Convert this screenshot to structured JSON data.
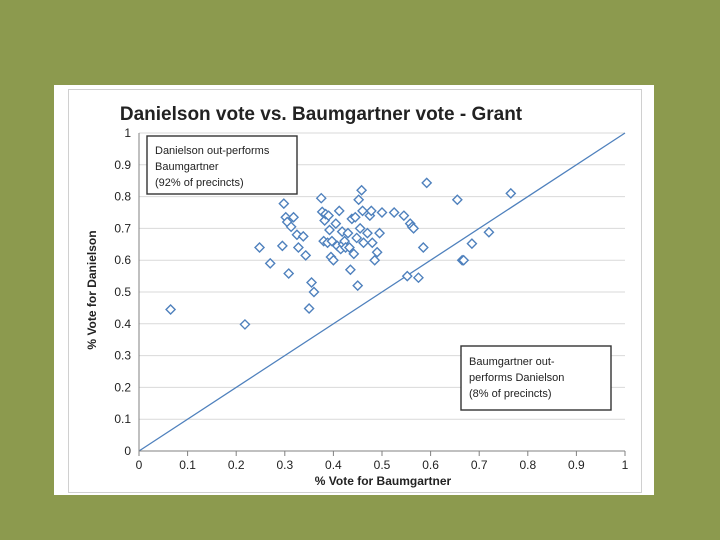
{
  "colors": {
    "background": "#8c9a4e",
    "marker": "#4f81bd",
    "diagonal": "#4f81bd",
    "grid": "#d9d9d9"
  },
  "chart_data": {
    "type": "scatter",
    "title": "Danielson vote vs. Baumgartner vote - Grant",
    "xlabel": "% Vote for Baumgartner",
    "ylabel": "% Vote for Danielson",
    "xlim": [
      0,
      1
    ],
    "ylim": [
      0,
      1
    ],
    "x_ticks": [
      "0",
      "0.1",
      "0.2",
      "0.3",
      "0.4",
      "0.5",
      "0.6",
      "0.7",
      "0.8",
      "0.9",
      "1"
    ],
    "y_ticks": [
      "0",
      "0.1",
      "0.2",
      "0.3",
      "0.4",
      "0.5",
      "0.6",
      "0.7",
      "0.8",
      "0.9",
      "1"
    ],
    "grid": "horizontal",
    "marker": "hollow-diamond",
    "reference_line": {
      "from": [
        0,
        0
      ],
      "to": [
        1,
        1
      ]
    },
    "annotations": [
      {
        "lines": [
          "Danielson out-performs",
          "Baumgartner",
          "(92% of precincts)"
        ],
        "placement": "top-left"
      },
      {
        "lines": [
          "Baumgartner out-",
          "performs Danielson",
          "(8% of precincts)"
        ],
        "placement": "bottom-right"
      }
    ],
    "points": [
      [
        0.065,
        0.445
      ],
      [
        0.218,
        0.398
      ],
      [
        0.248,
        0.64
      ],
      [
        0.27,
        0.59
      ],
      [
        0.295,
        0.645
      ],
      [
        0.298,
        0.778
      ],
      [
        0.302,
        0.735
      ],
      [
        0.305,
        0.72
      ],
      [
        0.308,
        0.558
      ],
      [
        0.313,
        0.705
      ],
      [
        0.318,
        0.735
      ],
      [
        0.325,
        0.68
      ],
      [
        0.328,
        0.64
      ],
      [
        0.338,
        0.675
      ],
      [
        0.343,
        0.615
      ],
      [
        0.35,
        0.448
      ],
      [
        0.355,
        0.53
      ],
      [
        0.36,
        0.5
      ],
      [
        0.375,
        0.795
      ],
      [
        0.377,
        0.752
      ],
      [
        0.38,
        0.66
      ],
      [
        0.382,
        0.725
      ],
      [
        0.384,
        0.745
      ],
      [
        0.388,
        0.655
      ],
      [
        0.39,
        0.74
      ],
      [
        0.392,
        0.695
      ],
      [
        0.395,
        0.61
      ],
      [
        0.397,
        0.66
      ],
      [
        0.4,
        0.6
      ],
      [
        0.405,
        0.715
      ],
      [
        0.408,
        0.645
      ],
      [
        0.412,
        0.755
      ],
      [
        0.415,
        0.635
      ],
      [
        0.418,
        0.69
      ],
      [
        0.42,
        0.65
      ],
      [
        0.423,
        0.66
      ],
      [
        0.425,
        0.64
      ],
      [
        0.43,
        0.685
      ],
      [
        0.433,
        0.64
      ],
      [
        0.435,
        0.57
      ],
      [
        0.438,
        0.73
      ],
      [
        0.442,
        0.62
      ],
      [
        0.445,
        0.735
      ],
      [
        0.448,
        0.67
      ],
      [
        0.45,
        0.52
      ],
      [
        0.452,
        0.79
      ],
      [
        0.455,
        0.7
      ],
      [
        0.458,
        0.82
      ],
      [
        0.46,
        0.755
      ],
      [
        0.462,
        0.655
      ],
      [
        0.47,
        0.685
      ],
      [
        0.475,
        0.74
      ],
      [
        0.478,
        0.755
      ],
      [
        0.48,
        0.655
      ],
      [
        0.485,
        0.6
      ],
      [
        0.49,
        0.625
      ],
      [
        0.495,
        0.685
      ],
      [
        0.5,
        0.75
      ],
      [
        0.525,
        0.75
      ],
      [
        0.545,
        0.74
      ],
      [
        0.552,
        0.55
      ],
      [
        0.558,
        0.715
      ],
      [
        0.562,
        0.705
      ],
      [
        0.565,
        0.7
      ],
      [
        0.575,
        0.545
      ],
      [
        0.585,
        0.64
      ],
      [
        0.592,
        0.843
      ],
      [
        0.655,
        0.79
      ],
      [
        0.665,
        0.6
      ],
      [
        0.668,
        0.6
      ],
      [
        0.685,
        0.652
      ],
      [
        0.72,
        0.688
      ],
      [
        0.765,
        0.81
      ]
    ]
  }
}
